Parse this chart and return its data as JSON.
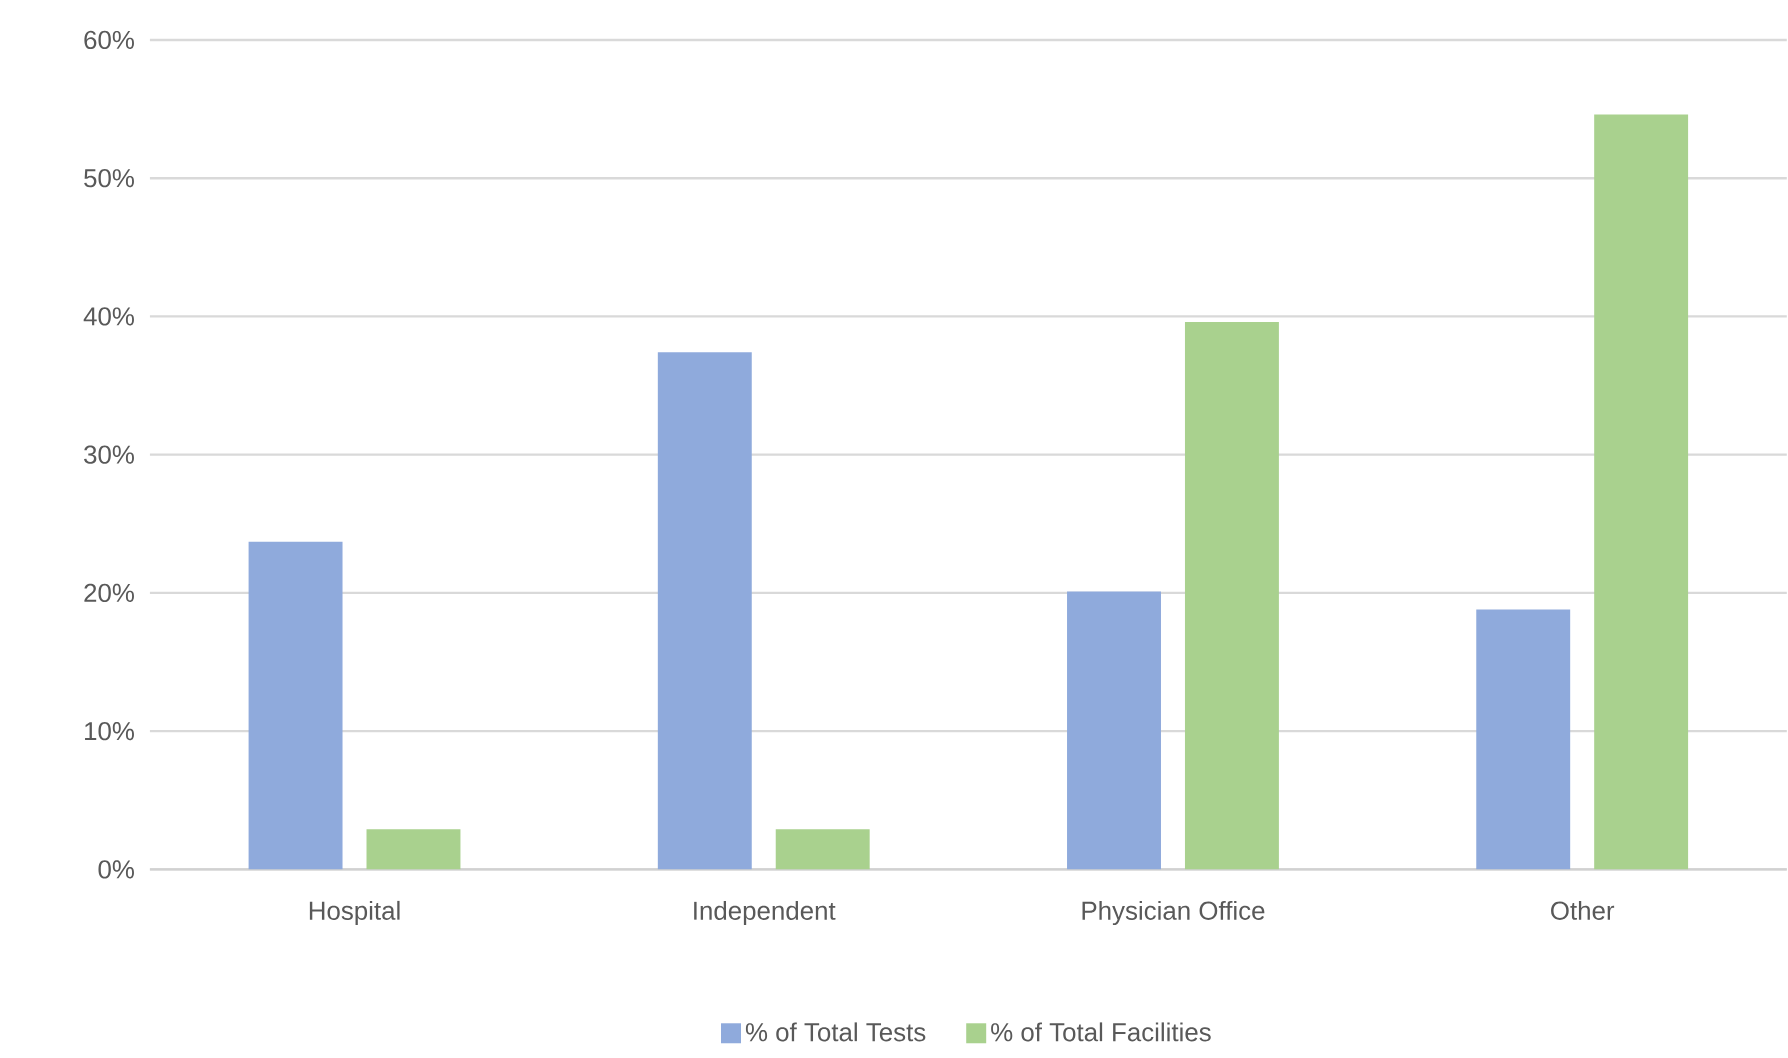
{
  "chart_data": {
    "type": "bar",
    "categories": [
      "Hospital",
      "Independent",
      "Physician Office",
      "Other"
    ],
    "series": [
      {
        "name": "% of Total Tests",
        "color": "#8faadc",
        "values": [
          23.7,
          37.4,
          20.1,
          18.8
        ]
      },
      {
        "name": "% of Total Facilities",
        "color": "#a9d18e",
        "values": [
          2.9,
          2.9,
          39.6,
          54.6
        ]
      }
    ],
    "ylim": [
      0,
      60
    ],
    "yticks": [
      {
        "value": 0,
        "label": "0%"
      },
      {
        "value": 10,
        "label": "10%"
      },
      {
        "value": 20,
        "label": "20%"
      },
      {
        "value": 30,
        "label": "30%"
      },
      {
        "value": 40,
        "label": "40%"
      },
      {
        "value": 50,
        "label": "50%"
      },
      {
        "value": 60,
        "label": "60%"
      }
    ],
    "grid": "y",
    "legend": "bottom"
  }
}
